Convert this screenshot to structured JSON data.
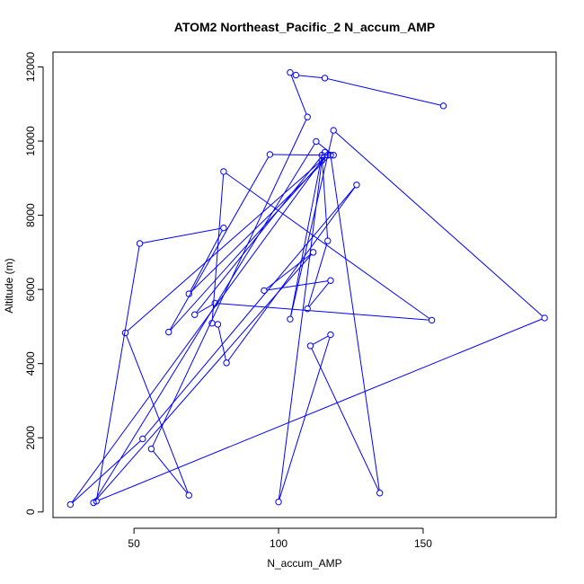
{
  "chart_data": {
    "type": "scatter",
    "title": "ATOM2 Northeast_Pacific_2 N_accum_AMP",
    "xlabel": "N_accum_AMP",
    "ylabel": "Altitude (m)",
    "xlim": [
      22,
      196
    ],
    "ylim": [
      -150,
      12400
    ],
    "xticks": [
      50,
      100,
      150
    ],
    "yticks": [
      0,
      2000,
      4000,
      6000,
      8000,
      10000,
      12000
    ],
    "grid": false,
    "color": "#0000ff",
    "series": [
      {
        "points": [
          [
            157,
            10950
          ],
          [
            116,
            11700
          ],
          [
            106,
            11780
          ],
          [
            104,
            11850
          ],
          [
            110,
            10650
          ],
          [
            56,
            1700
          ],
          [
            69,
            450
          ],
          [
            47,
            4830
          ],
          [
            117,
            9620
          ],
          [
            62,
            4850
          ],
          [
            97,
            9640
          ],
          [
            119,
            9620
          ],
          [
            113,
            9990
          ],
          [
            36,
            250
          ],
          [
            112,
            7000
          ],
          [
            95,
            5970
          ],
          [
            118,
            6240
          ],
          [
            110,
            5480
          ],
          [
            117,
            7310
          ],
          [
            115,
            9620
          ],
          [
            104,
            5200
          ],
          [
            119,
            10290
          ],
          [
            192,
            5230
          ],
          [
            37,
            290
          ],
          [
            52,
            7240
          ],
          [
            81,
            7660
          ],
          [
            69,
            5880
          ],
          [
            118,
            9620
          ],
          [
            135,
            510
          ],
          [
            111,
            4480
          ],
          [
            118,
            4780
          ],
          [
            100,
            270
          ],
          [
            115,
            9480
          ],
          [
            28,
            200
          ],
          [
            53,
            1970
          ],
          [
            127,
            8820
          ],
          [
            82,
            4020
          ],
          [
            79,
            5060
          ],
          [
            77,
            5090
          ],
          [
            81,
            9180
          ],
          [
            153,
            5170
          ],
          [
            78,
            5630
          ],
          [
            71,
            5320
          ],
          [
            116,
            9700
          ]
        ]
      }
    ]
  }
}
